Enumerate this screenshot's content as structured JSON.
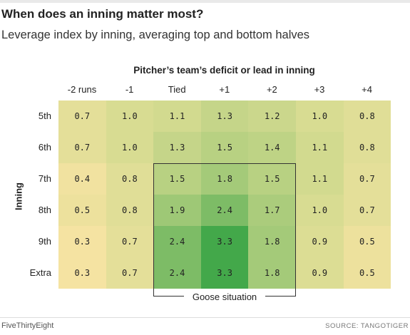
{
  "title": "When does an inning matter most?",
  "subtitle": "Leverage index by inning, averaging top and bottom halves",
  "chart_data": {
    "type": "heatmap",
    "x_title": "Pitcher’s team’s deficit or lead in inning",
    "y_title": "Inning",
    "columns": [
      "-2 runs",
      "-1",
      "Tied",
      "+1",
      "+2",
      "+3",
      "+4"
    ],
    "rows": [
      "5th",
      "6th",
      "7th",
      "8th",
      "9th",
      "Extra"
    ],
    "values": [
      [
        "0.7",
        "1.0",
        "1.1",
        "1.3",
        "1.2",
        "1.0",
        "0.8"
      ],
      [
        "0.7",
        "1.0",
        "1.3",
        "1.5",
        "1.4",
        "1.1",
        "0.8"
      ],
      [
        "0.4",
        "0.8",
        "1.5",
        "1.8",
        "1.5",
        "1.1",
        "0.7"
      ],
      [
        "0.5",
        "0.8",
        "1.9",
        "2.4",
        "1.7",
        "1.0",
        "0.7"
      ],
      [
        "0.3",
        "0.7",
        "2.4",
        "3.3",
        "1.8",
        "0.9",
        "0.5"
      ],
      [
        "0.3",
        "0.7",
        "2.4",
        "3.3",
        "1.8",
        "0.9",
        "0.5"
      ]
    ],
    "highlight": {
      "label": "Goose situation",
      "columns": [
        "Tied",
        "+1",
        "+2"
      ],
      "rows": [
        "7th",
        "8th",
        "9th",
        "Extra"
      ]
    },
    "color_scale": {
      "low": "#f5e3a2",
      "mid": "#d8dc92",
      "high": "#43a84a"
    }
  },
  "footer": {
    "brand": "FiveThirtyEight",
    "source": "SOURCE: TANGOTIGER"
  }
}
